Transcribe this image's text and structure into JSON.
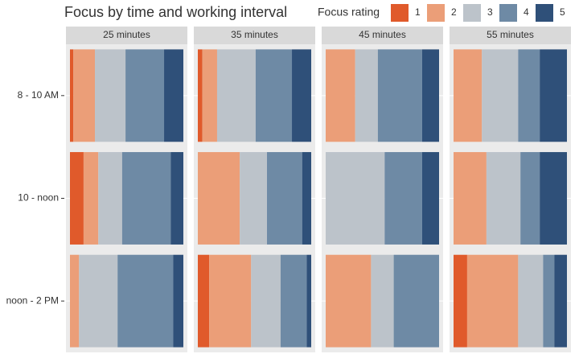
{
  "chart_data": {
    "type": "bar",
    "orientation": "horizontal",
    "stacked": true,
    "title": "Focus by time and working interval",
    "legend_title": "Focus rating",
    "facets": [
      "25 minutes",
      "35 minutes",
      "45 minutes",
      "55 minutes"
    ],
    "categories": [
      "8 - 10 AM",
      "10 - noon",
      "noon - 2 PM"
    ],
    "xlim": [
      0,
      100
    ],
    "series": [
      {
        "name": "1",
        "color": "#e05a2b",
        "values": [
          [
            3,
            12,
            0
          ],
          [
            4,
            0,
            10
          ],
          [
            0,
            0,
            0
          ],
          [
            0,
            0,
            12
          ]
        ]
      },
      {
        "name": "2",
        "color": "#eb9e78",
        "values": [
          [
            19,
            13,
            8
          ],
          [
            13,
            37,
            37
          ],
          [
            26,
            0,
            40
          ],
          [
            25,
            29,
            45
          ]
        ]
      },
      {
        "name": "3",
        "color": "#bcc3ca",
        "values": [
          [
            27,
            21,
            34
          ],
          [
            34,
            24,
            26
          ],
          [
            20,
            52,
            20
          ],
          [
            32,
            30,
            22
          ]
        ]
      },
      {
        "name": "4",
        "color": "#6e8aa5",
        "values": [
          [
            34,
            43,
            49
          ],
          [
            32,
            31,
            23
          ],
          [
            39,
            33,
            40
          ],
          [
            19,
            17,
            10
          ]
        ]
      },
      {
        "name": "5",
        "color": "#2f5079",
        "values": [
          [
            17,
            11,
            9
          ],
          [
            17,
            8,
            4
          ],
          [
            15,
            15,
            0
          ],
          [
            24,
            24,
            11
          ]
        ]
      }
    ]
  }
}
